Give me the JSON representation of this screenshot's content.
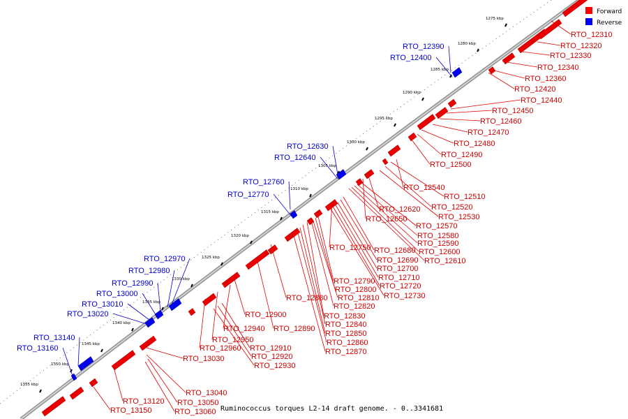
{
  "caption": "Ruminococcus torques L2-14 draft genome. - 0..3341681",
  "legend": [
    {
      "label": "Forward",
      "color": "#ff0000"
    },
    {
      "label": "Reverse",
      "color": "#0000ff"
    }
  ],
  "scale_ticks": [
    "1275 kbp",
    "1280 kbp",
    "1285 kbp",
    "1290 kbp",
    "1295 kbp",
    "1300 kbp",
    "1305 kbp",
    "1310 kbp",
    "1315 kbp",
    "1320 kbp",
    "1325 kbp",
    "1330 kbp",
    "1335 kbp",
    "1340 kbp",
    "1345 kbp",
    "1350 kbp",
    "1355 kbp"
  ],
  "reverse_genes": [
    "RTO_12390",
    "RTO_12400",
    "RTO_12630",
    "RTO_12640",
    "RTO_12760",
    "RTO_12770",
    "RTO_12970",
    "RTO_12980",
    "RTO_12990",
    "RTO_13000",
    "RTO_13010",
    "RTO_13020",
    "RTO_13140",
    "RTO_13160"
  ],
  "forward_genes": [
    "RTO_12310",
    "RTO_12320",
    "RTO_12330",
    "RTO_12340",
    "RTO_12360",
    "RTO_12420",
    "RTO_12440",
    "RTO_12450",
    "RTO_12460",
    "RTO_12470",
    "RTO_12480",
    "RTO_12490",
    "RTO_12500",
    "RTO_12540",
    "RTO_12510",
    "RTO_12520",
    "RTO_12530",
    "RTO_12620",
    "RTO_12650",
    "RTO_12570",
    "RTO_12580",
    "RTO_12590",
    "RTO_12600",
    "RTO_12610",
    "RTO_12750",
    "RTO_12680",
    "RTO_12690",
    "RTO_12700",
    "RTO_12710",
    "RTO_12720",
    "RTO_12730",
    "RTO_12790",
    "RTO_12800",
    "RTO_12810",
    "RTO_12820",
    "RTO_12880",
    "RTO_12830",
    "RTO_12840",
    "RTO_12850",
    "RTO_12860",
    "RTO_12870",
    "RTO_12900",
    "RTO_12890",
    "RTO_12940",
    "RTO_12950",
    "RTO_12960",
    "RTO_12910",
    "RTO_12920",
    "RTO_12930",
    "RTO_13030",
    "RTO_13040",
    "RTO_13050",
    "RTO_13060",
    "RTO_13120",
    "RTO_13150"
  ]
}
